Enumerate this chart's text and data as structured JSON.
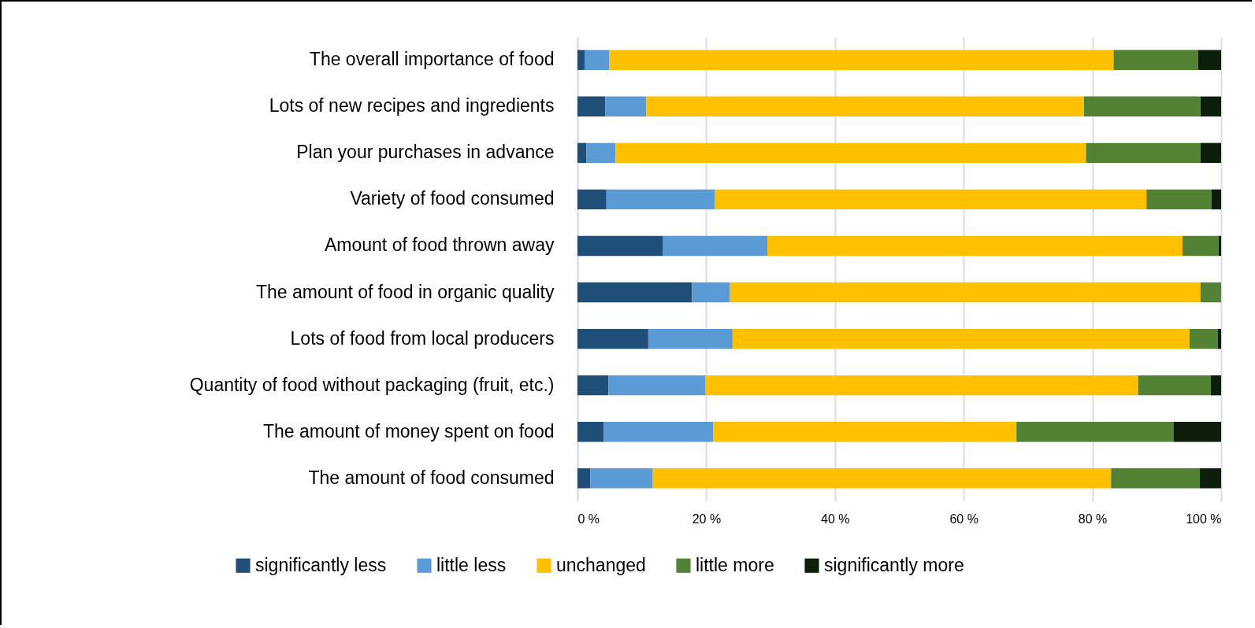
{
  "chart_data": {
    "type": "bar",
    "orientation": "horizontal",
    "stacked": true,
    "categories": [
      "The overall importance of food",
      "Lots of new recipes and ingredients",
      "Plan your purchases in advance",
      "Variety of food consumed",
      "Amount of food thrown away",
      "The amount of food in organic quality",
      "Lots of food from local producers",
      "Quantity of food without packaging (fruit, etc.)",
      "The amount of money spent on food",
      "The amount of food consumed"
    ],
    "series": [
      {
        "name": "significantly less",
        "color": "#1f4e79",
        "values": [
          1.1,
          4.3,
          1.4,
          4.5,
          13.3,
          17.8,
          11.0,
          4.8,
          4.1,
          2.0
        ]
      },
      {
        "name": "little less",
        "color": "#5b9bd5",
        "values": [
          3.8,
          6.4,
          4.5,
          16.8,
          16.2,
          5.9,
          13.1,
          15.1,
          17.0,
          9.7
        ]
      },
      {
        "name": "unchanged",
        "color": "#ffc000",
        "values": [
          78.4,
          68.0,
          73.1,
          67.1,
          64.5,
          73.1,
          71.0,
          67.2,
          47.1,
          71.2
        ]
      },
      {
        "name": "little more",
        "color": "#548235",
        "values": [
          13.1,
          18.1,
          17.8,
          10.1,
          5.6,
          3.2,
          4.4,
          11.3,
          24.4,
          13.8
        ]
      },
      {
        "name": "significantly more",
        "color": "#0c1f0a",
        "values": [
          3.6,
          3.2,
          3.2,
          1.5,
          0.4,
          0,
          0.5,
          1.6,
          7.4,
          3.3
        ]
      }
    ],
    "xlim": [
      0,
      100
    ],
    "xticks": [
      {
        "value": 0,
        "label": "0 %"
      },
      {
        "value": 20,
        "label": "20 %"
      },
      {
        "value": 40,
        "label": "40 %"
      },
      {
        "value": 60,
        "label": "60 %"
      },
      {
        "value": 80,
        "label": "80 %"
      },
      {
        "value": 100,
        "label": "100 %"
      }
    ],
    "grid": "x",
    "legend": "bottom"
  }
}
